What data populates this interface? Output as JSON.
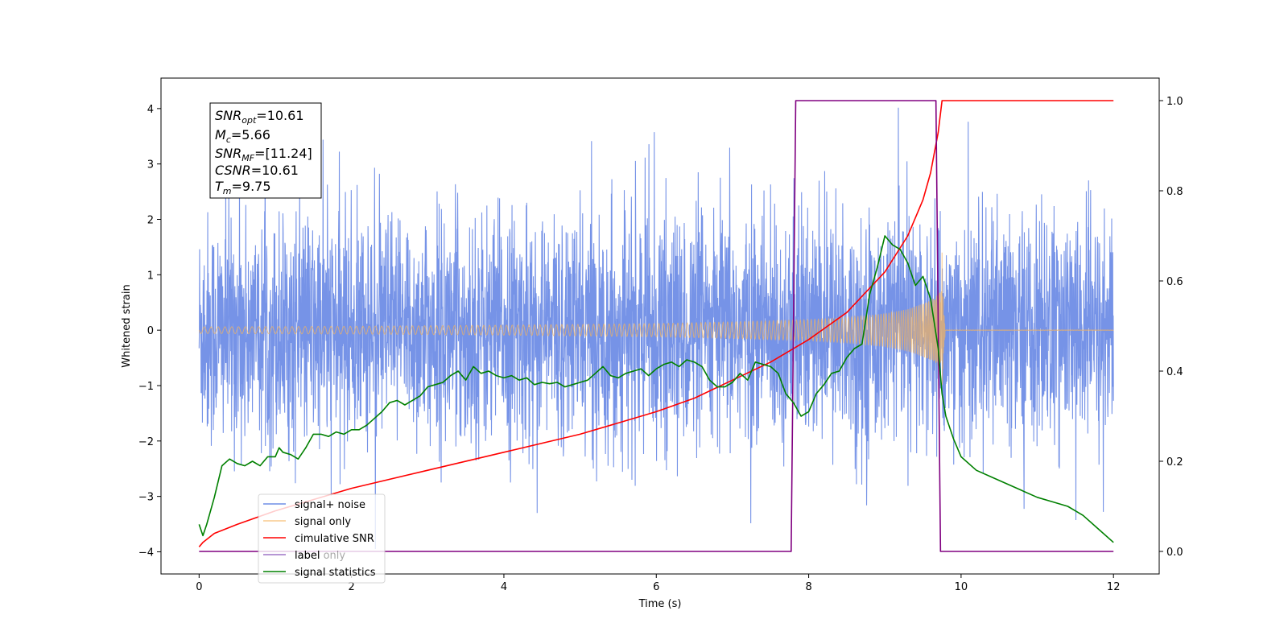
{
  "chart_data": {
    "type": "line",
    "xlabel": "Time (s)",
    "ylabel": "Whitened strain",
    "xlim": [
      -0.5,
      12.6
    ],
    "ylim": [
      -4.4,
      4.55
    ],
    "y2lim": [
      -0.05,
      1.05
    ],
    "xticks": [
      0,
      2,
      4,
      6,
      8,
      10,
      12
    ],
    "yticks": [
      -4,
      -3,
      -2,
      -1,
      0,
      1,
      2,
      3,
      4
    ],
    "y2ticks": [
      0.0,
      0.2,
      0.4,
      0.6,
      0.8,
      1.0
    ],
    "y2tick_labels": [
      "0.0",
      "0.2",
      "0.4",
      "0.6",
      "0.8",
      "1.0"
    ],
    "grid": false,
    "legend_position": "lower-left",
    "annotation": {
      "snr_opt": {
        "base": "SNR",
        "sub": "opt",
        "value": "=10.61"
      },
      "mc": {
        "base": "M",
        "sub": "c",
        "value": "=5.66"
      },
      "snr_mf": {
        "base": "SNR",
        "sub": "MF",
        "value": "=[11.24]"
      },
      "csnr": {
        "base": "CSNR",
        "value": "=10.61"
      },
      "tm": {
        "base": "T",
        "sub": "m",
        "value": "=9.75"
      }
    },
    "series": [
      {
        "name": "signal+ noise",
        "axis": "left",
        "color": "#6f8de6",
        "description_values": {
          "x_range": [
            0,
            12
          ],
          "noise_std": 1.05,
          "min": -3.95,
          "max": 4.2
        }
      },
      {
        "name": "signal only",
        "axis": "left",
        "color": "#f5b35c",
        "envelope": {
          "x": [
            0,
            2,
            4,
            6,
            7,
            8,
            8.5,
            9,
            9.3,
            9.5,
            9.65,
            9.75
          ],
          "amplitude": [
            0.06,
            0.07,
            0.09,
            0.12,
            0.15,
            0.19,
            0.23,
            0.3,
            0.38,
            0.48,
            0.58,
            0.72
          ]
        },
        "t_merger": 9.75
      },
      {
        "name": "cimulative SNR",
        "axis": "right",
        "color": "#ff0000",
        "x": [
          0,
          0.05,
          0.2,
          0.5,
          1,
          2,
          3,
          4,
          5,
          6,
          6.5,
          7,
          7.5,
          8,
          8.5,
          9,
          9.3,
          9.5,
          9.6,
          9.7,
          9.75,
          9.76,
          12
        ],
        "y": [
          0.01,
          0.02,
          0.04,
          0.06,
          0.09,
          0.14,
          0.18,
          0.22,
          0.26,
          0.31,
          0.34,
          0.38,
          0.42,
          0.47,
          0.53,
          0.62,
          0.7,
          0.78,
          0.84,
          0.93,
          1.0,
          1.0,
          1.0
        ]
      },
      {
        "name": "label",
        "axis": "right",
        "color": "#800080",
        "x": [
          0,
          7.77,
          7.83,
          9.67,
          9.73,
          12
        ],
        "y": [
          0,
          0,
          1,
          1,
          0,
          0
        ]
      },
      {
        "name": "label only",
        "axis": "right",
        "color": "#b39ddb",
        "x": [],
        "y": []
      },
      {
        "name": "signal statistics",
        "axis": "right",
        "color": "#008000",
        "x": [
          0,
          0.05,
          0.1,
          0.2,
          0.3,
          0.4,
          0.5,
          0.6,
          0.7,
          0.8,
          0.9,
          1.0,
          1.05,
          1.1,
          1.2,
          1.3,
          1.4,
          1.5,
          1.6,
          1.7,
          1.8,
          1.9,
          2.0,
          2.1,
          2.2,
          2.3,
          2.4,
          2.5,
          2.6,
          2.7,
          2.8,
          2.9,
          3.0,
          3.1,
          3.2,
          3.3,
          3.4,
          3.5,
          3.6,
          3.7,
          3.8,
          3.9,
          4.0,
          4.1,
          4.2,
          4.3,
          4.4,
          4.5,
          4.6,
          4.7,
          4.8,
          4.9,
          5.0,
          5.1,
          5.2,
          5.3,
          5.4,
          5.5,
          5.6,
          5.7,
          5.8,
          5.9,
          6.0,
          6.1,
          6.2,
          6.3,
          6.4,
          6.5,
          6.6,
          6.7,
          6.8,
          6.9,
          7.0,
          7.1,
          7.2,
          7.3,
          7.4,
          7.5,
          7.6,
          7.7,
          7.8,
          7.9,
          8.0,
          8.1,
          8.2,
          8.3,
          8.4,
          8.5,
          8.6,
          8.7,
          8.8,
          8.9,
          9.0,
          9.1,
          9.2,
          9.3,
          9.4,
          9.5,
          9.6,
          9.7,
          9.75,
          9.8,
          9.9,
          10.0,
          10.2,
          10.4,
          10.6,
          10.8,
          11.0,
          11.2,
          11.4,
          11.6,
          11.8,
          12.0
        ],
        "y": [
          0.06,
          0.035,
          0.06,
          0.12,
          0.19,
          0.205,
          0.195,
          0.19,
          0.2,
          0.19,
          0.21,
          0.21,
          0.23,
          0.22,
          0.215,
          0.205,
          0.23,
          0.26,
          0.26,
          0.255,
          0.265,
          0.26,
          0.27,
          0.27,
          0.28,
          0.295,
          0.31,
          0.33,
          0.335,
          0.325,
          0.335,
          0.345,
          0.365,
          0.37,
          0.375,
          0.39,
          0.4,
          0.38,
          0.41,
          0.395,
          0.4,
          0.39,
          0.385,
          0.39,
          0.38,
          0.385,
          0.37,
          0.375,
          0.372,
          0.375,
          0.365,
          0.37,
          0.375,
          0.38,
          0.395,
          0.41,
          0.39,
          0.385,
          0.395,
          0.4,
          0.405,
          0.39,
          0.405,
          0.415,
          0.42,
          0.41,
          0.425,
          0.42,
          0.41,
          0.38,
          0.365,
          0.365,
          0.375,
          0.395,
          0.38,
          0.42,
          0.415,
          0.41,
          0.395,
          0.35,
          0.33,
          0.3,
          0.31,
          0.35,
          0.37,
          0.395,
          0.4,
          0.43,
          0.45,
          0.46,
          0.57,
          0.63,
          0.7,
          0.68,
          0.67,
          0.64,
          0.59,
          0.61,
          0.56,
          0.45,
          0.35,
          0.3,
          0.25,
          0.21,
          0.18,
          0.165,
          0.15,
          0.135,
          0.12,
          0.11,
          0.1,
          0.08,
          0.05,
          0.02
        ]
      }
    ]
  }
}
